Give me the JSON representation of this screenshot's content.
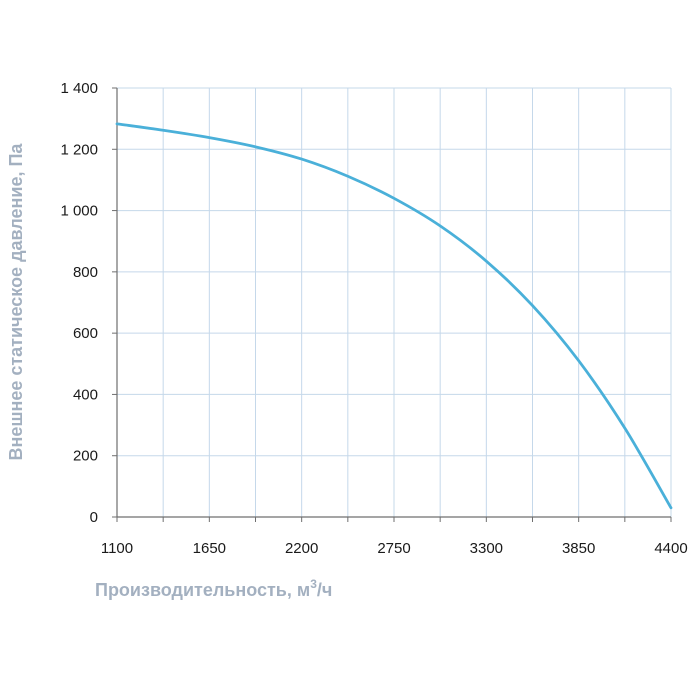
{
  "chart_data": {
    "type": "line",
    "xlabel_main": "Производительность, м",
    "xlabel_sup": "3",
    "xlabel_tail": "/ч",
    "ylabel": "Внешнее статическое давление, Па",
    "xlim": [
      1100,
      4400
    ],
    "ylim": [
      0,
      1400
    ],
    "x_ticks": [
      "1100",
      "1650",
      "2200",
      "2750",
      "3300",
      "3850",
      "4400"
    ],
    "y_ticks": [
      "0",
      "200",
      "400",
      "600",
      "800",
      "1 000",
      "1 200",
      "1 400"
    ],
    "x_tick_values": [
      1100,
      1650,
      2200,
      2750,
      3300,
      3850,
      4400
    ],
    "y_tick_values": [
      0,
      200,
      400,
      600,
      800,
      1000,
      1200,
      1400
    ],
    "grid": true,
    "series_color": "#4ab0d9",
    "x": [
      1100,
      1375,
      1650,
      1925,
      2200,
      2475,
      2750,
      3025,
      3300,
      3575,
      3850,
      4125,
      4400
    ],
    "y": [
      1283,
      1262,
      1238,
      1208,
      1168,
      1112,
      1040,
      950,
      835,
      690,
      510,
      290,
      30
    ]
  }
}
